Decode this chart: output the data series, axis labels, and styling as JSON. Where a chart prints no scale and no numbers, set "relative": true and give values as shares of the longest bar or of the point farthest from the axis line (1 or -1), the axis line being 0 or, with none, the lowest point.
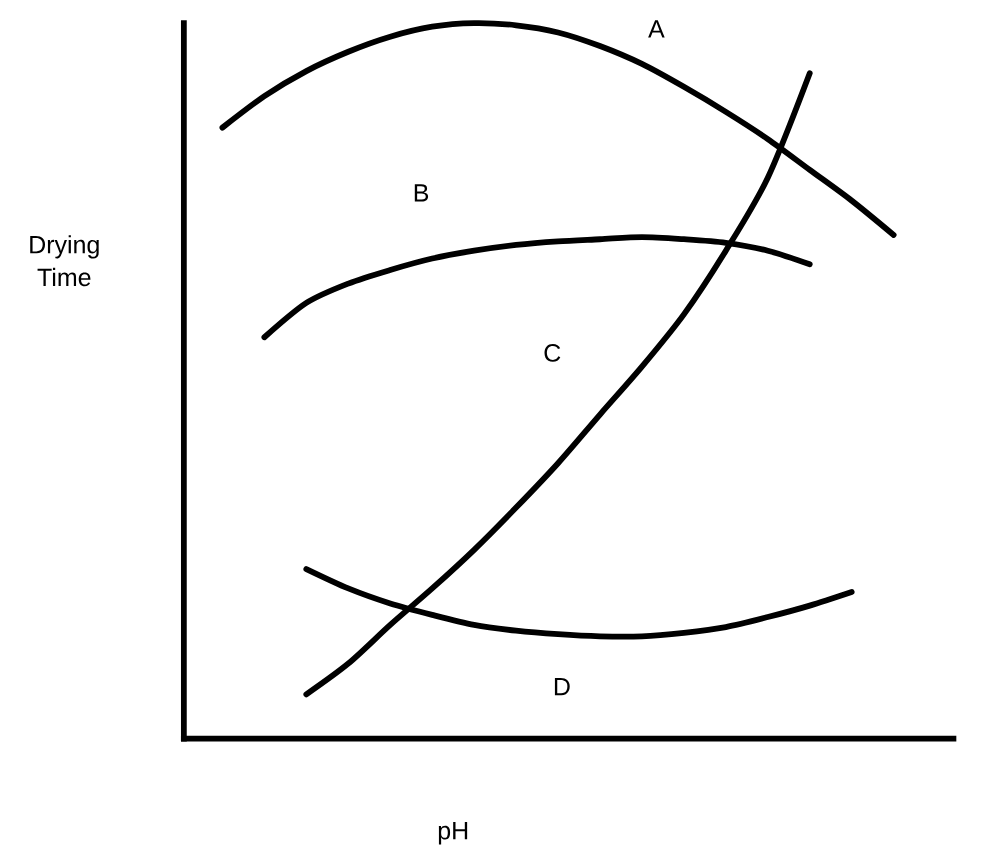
{
  "chart_data": {
    "type": "line",
    "relative": true,
    "xlabel": "pH",
    "ylabel": "Drying Time",
    "marker": "none",
    "line_style": "solid",
    "categories": [
      null,
      null,
      null,
      null,
      null,
      null,
      null,
      null,
      null,
      null,
      null,
      null,
      null,
      null,
      null,
      null,
      null
    ],
    "series": [
      {
        "color": "#000000",
        "values": [
          0.854,
          0.898,
          0.933,
          0.96,
          0.981,
          0.995,
          1,
          0.997,
          0.987,
          0.968,
          0.943,
          0.911,
          0.876,
          0.838,
          0.795,
          0.752,
          0.704
        ]
      },
      {
        "color": "#000000",
        "values": [
          null,
          0.561,
          0.609,
          0.636,
          0.655,
          0.671,
          0.682,
          0.69,
          0.695,
          0.698,
          0.701,
          0.698,
          0.693,
          0.682,
          0.663,
          null,
          null
        ]
      },
      {
        "color": "#000000",
        "values": [
          null,
          null,
          0.062,
          0.105,
          0.159,
          0.21,
          0.264,
          0.323,
          0.385,
          0.453,
          0.52,
          0.593,
          0.682,
          0.784,
          0.93,
          null,
          null
        ]
      },
      {
        "color": "#000000",
        "values": [
          null,
          null,
          0.237,
          0.21,
          0.189,
          0.173,
          0.159,
          0.151,
          0.146,
          0.143,
          0.143,
          0.148,
          0.156,
          0.17,
          0.186,
          0.205,
          null
        ]
      }
    ],
    "annotations": [
      "A",
      "B",
      "C",
      "D"
    ]
  }
}
